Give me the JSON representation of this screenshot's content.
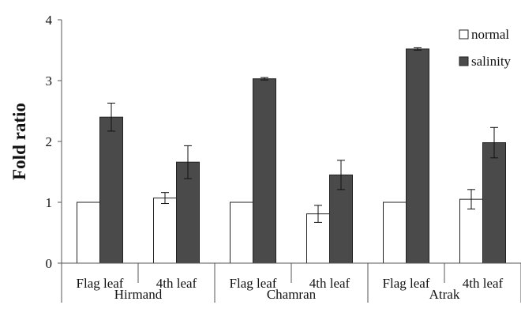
{
  "colors": {
    "normal": "#ffffff",
    "salinity": "#4a4a4a",
    "edge": "#222222",
    "axis": "#555555"
  },
  "chart_data": {
    "type": "bar",
    "title": "",
    "xlabel": "",
    "ylabel": "Fold ratio",
    "ylim": [
      0,
      4
    ],
    "yticks": [
      "0",
      "1",
      "2",
      "3",
      "4"
    ],
    "grid": false,
    "legend_position": "top-right",
    "categories": [
      "Flag leaf",
      "4th leaf",
      "Flag leaf",
      "4th leaf",
      "Flag leaf",
      "4th leaf"
    ],
    "groups": [
      {
        "label": "Hirmand",
        "categories": [
          0,
          1
        ]
      },
      {
        "label": "Chamran",
        "categories": [
          2,
          3
        ]
      },
      {
        "label": "Atrak",
        "categories": [
          4,
          5
        ]
      }
    ],
    "series": [
      {
        "name": "normal",
        "values": [
          1.0,
          1.07,
          1.0,
          0.81,
          1.0,
          1.05
        ],
        "errors": [
          0,
          0.09,
          0,
          0.14,
          0,
          0.16
        ]
      },
      {
        "name": "salinity",
        "values": [
          2.4,
          1.66,
          3.03,
          1.45,
          3.52,
          1.98
        ],
        "errors": [
          0.23,
          0.27,
          0.02,
          0.24,
          0.02,
          0.25
        ]
      }
    ]
  }
}
